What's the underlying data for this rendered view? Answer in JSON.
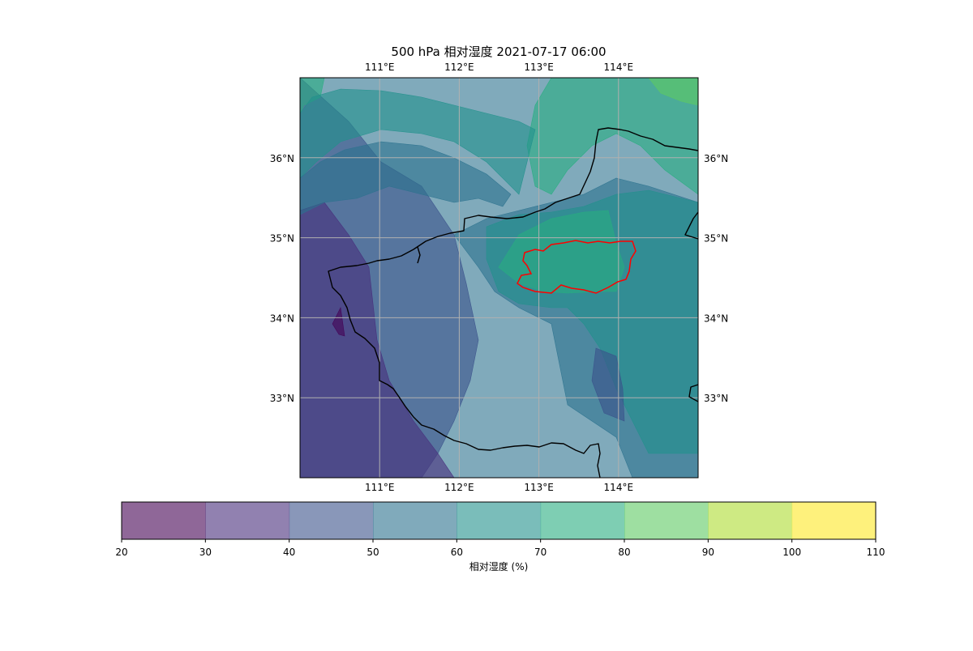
{
  "title": "500 hPa 相对湿度 2021-07-17 06:00",
  "map": {
    "lon_ticks": [
      {
        "value": 111,
        "label": "111°E"
      },
      {
        "value": 112,
        "label": "112°E"
      },
      {
        "value": 113,
        "label": "113°E"
      },
      {
        "value": 114,
        "label": "114°E"
      }
    ],
    "lat_ticks": [
      {
        "value": 36,
        "label": "36°N"
      },
      {
        "value": 35,
        "label": "35°N"
      },
      {
        "value": 34,
        "label": "34°N"
      },
      {
        "value": 33,
        "label": "33°N"
      }
    ],
    "extent": {
      "lon_min": 110,
      "lon_max": 115,
      "lat_min": 32,
      "lat_max": 37
    },
    "gridlines": true,
    "border_color": "#000000",
    "highlight_region_color": "#ff0000",
    "fill_alpha": 0.6
  },
  "colorbar": {
    "label": "相对湿度 (%)",
    "levels": [
      20,
      30,
      40,
      50,
      60,
      70,
      80,
      90,
      100,
      110
    ],
    "colors": [
      "#440154",
      "#472d7b",
      "#3b528b",
      "#2c728e",
      "#21918c",
      "#28ae80",
      "#5ec962",
      "#addc30",
      "#fde725"
    ]
  }
}
